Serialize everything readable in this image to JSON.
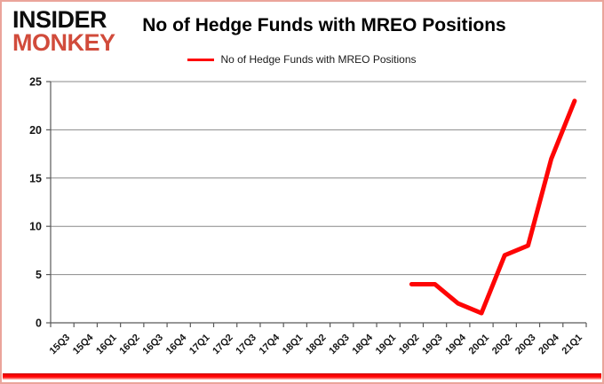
{
  "logo": {
    "line1": "INSIDER",
    "line2": "MONKEY",
    "line1_color": "#0d0d0d",
    "line2_color": "#d14b3b"
  },
  "title": "No of Hedge Funds with MREO Positions",
  "legend": {
    "label": "No of Hedge Funds with MREO Positions",
    "line_color": "#fe0505"
  },
  "chart_data": {
    "type": "line",
    "title": "No of Hedge Funds with MREO Positions",
    "categories": [
      "15Q3",
      "15Q4",
      "16Q1",
      "16Q2",
      "16Q3",
      "16Q4",
      "17Q1",
      "17Q2",
      "17Q3",
      "17Q4",
      "18Q1",
      "18Q2",
      "18Q3",
      "18Q4",
      "19Q1",
      "19Q2",
      "19Q3",
      "19Q4",
      "20Q1",
      "20Q2",
      "20Q3",
      "20Q4",
      "21Q1"
    ],
    "series": [
      {
        "name": "No of Hedge Funds with MREO Positions",
        "color": "#fe0505",
        "values": [
          null,
          null,
          null,
          null,
          null,
          null,
          null,
          null,
          null,
          null,
          null,
          null,
          null,
          null,
          null,
          4,
          4,
          2,
          1,
          7,
          8,
          17,
          23
        ]
      }
    ],
    "xlabel": "",
    "ylabel": "",
    "ylim": [
      0,
      25
    ],
    "yticks": [
      0,
      5,
      10,
      15,
      20,
      25
    ],
    "grid": true,
    "legend_position": "top"
  },
  "colors": {
    "gridline": "#898989",
    "axis": "#595959",
    "tick_label": "#141414",
    "frame_border": "#eba49b",
    "bottom_bar": "#ff0000"
  }
}
